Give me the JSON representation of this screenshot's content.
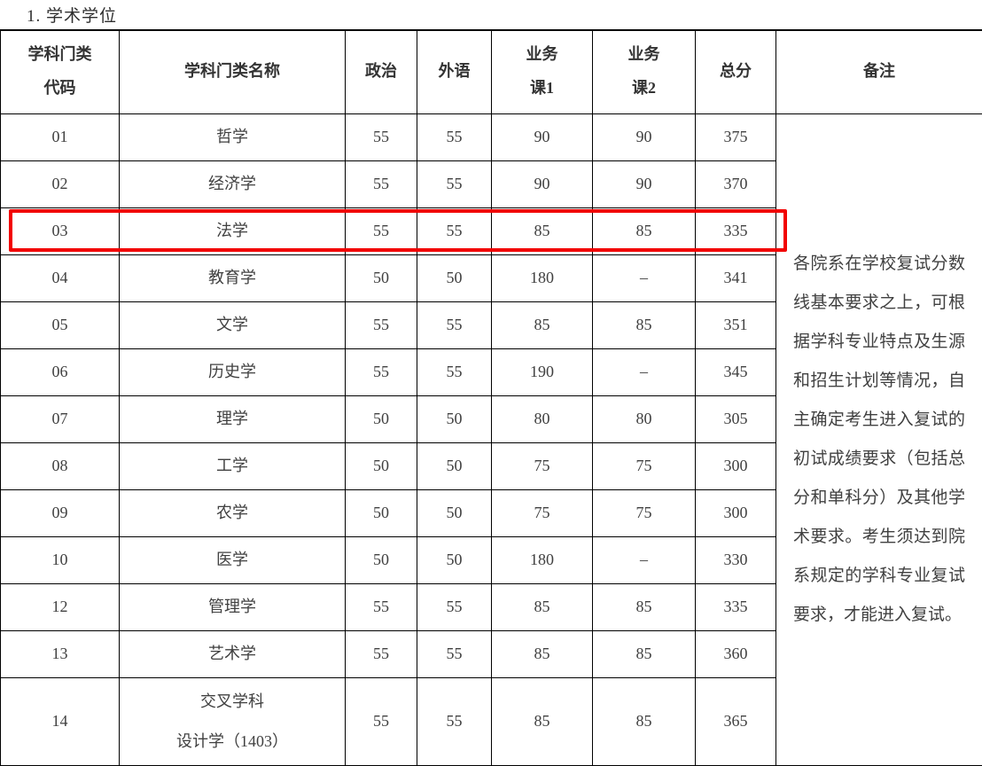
{
  "title": "1.  学术学位",
  "colors": {
    "highlight": "#f20000",
    "border": "#000000",
    "text": "#404040"
  },
  "table": {
    "headers": [
      {
        "key": "code",
        "label": "学科门类\n代码"
      },
      {
        "key": "name",
        "label": "学科门类名称"
      },
      {
        "key": "politics",
        "label": "政治"
      },
      {
        "key": "foreign",
        "label": "外语"
      },
      {
        "key": "course1",
        "label": "业务\n课1"
      },
      {
        "key": "course2",
        "label": "业务\n课2"
      },
      {
        "key": "total",
        "label": "总分"
      },
      {
        "key": "remarks",
        "label": "备注"
      }
    ],
    "rows": [
      {
        "code": "01",
        "name": "哲学",
        "politics": "55",
        "foreign": "55",
        "course1": "90",
        "course2": "90",
        "total": "375",
        "highlighted": false
      },
      {
        "code": "02",
        "name": "经济学",
        "politics": "55",
        "foreign": "55",
        "course1": "90",
        "course2": "90",
        "total": "370",
        "highlighted": false
      },
      {
        "code": "03",
        "name": "法学",
        "politics": "55",
        "foreign": "55",
        "course1": "85",
        "course2": "85",
        "total": "335",
        "highlighted": true
      },
      {
        "code": "04",
        "name": "教育学",
        "politics": "50",
        "foreign": "50",
        "course1": "180",
        "course2": "–",
        "total": "341",
        "highlighted": false
      },
      {
        "code": "05",
        "name": "文学",
        "politics": "55",
        "foreign": "55",
        "course1": "85",
        "course2": "85",
        "total": "351",
        "highlighted": false
      },
      {
        "code": "06",
        "name": "历史学",
        "politics": "55",
        "foreign": "55",
        "course1": "190",
        "course2": "–",
        "total": "345",
        "highlighted": false
      },
      {
        "code": "07",
        "name": "理学",
        "politics": "50",
        "foreign": "50",
        "course1": "80",
        "course2": "80",
        "total": "305",
        "highlighted": false
      },
      {
        "code": "08",
        "name": "工学",
        "politics": "50",
        "foreign": "50",
        "course1": "75",
        "course2": "75",
        "total": "300",
        "highlighted": false
      },
      {
        "code": "09",
        "name": "农学",
        "politics": "50",
        "foreign": "50",
        "course1": "75",
        "course2": "75",
        "total": "300",
        "highlighted": false
      },
      {
        "code": "10",
        "name": "医学",
        "politics": "50",
        "foreign": "50",
        "course1": "180",
        "course2": "–",
        "total": "330",
        "highlighted": false
      },
      {
        "code": "12",
        "name": "管理学",
        "politics": "55",
        "foreign": "55",
        "course1": "85",
        "course2": "85",
        "total": "335",
        "highlighted": false
      },
      {
        "code": "13",
        "name": "艺术学",
        "politics": "55",
        "foreign": "55",
        "course1": "85",
        "course2": "85",
        "total": "360",
        "highlighted": false
      },
      {
        "code": "14",
        "name": "交叉学科\n设计学（1403）",
        "politics": "55",
        "foreign": "55",
        "course1": "85",
        "course2": "85",
        "total": "365",
        "highlighted": false
      }
    ],
    "remarks": "各院系在学校复试分数线基本要求之上，可根据学科专业特点及生源和招生计划等情况，自主确定考生进入复试的初试成绩要求（包括总分和单科分）及其他学术要求。考生须达到院系规定的学科专业复试要求，才能进入复试。"
  }
}
